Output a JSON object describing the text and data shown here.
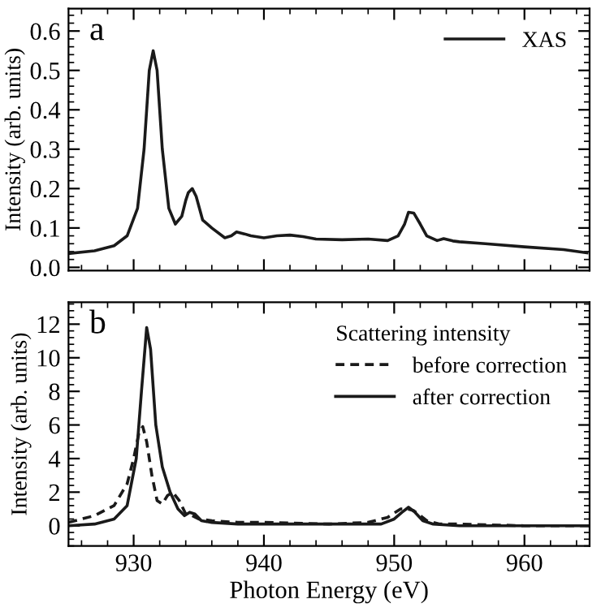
{
  "chart_data": [
    {
      "type": "line",
      "ylabel": "Intensity (arb. units)",
      "annotations": [
        "a"
      ],
      "xlim": [
        925,
        965
      ],
      "xticks": [
        930,
        940,
        950,
        960
      ],
      "ylim": [
        -0.008,
        0.657
      ],
      "yticks": [
        {
          "value": 0,
          "label": "0.0"
        },
        0.1,
        0.2,
        0.3,
        0.4,
        0.5,
        0.6
      ],
      "tick_labels": "y",
      "legend": "top right",
      "line_style": "solid",
      "series": [
        {
          "name": "XAS",
          "color": "#1a1a1a",
          "x": [
            925,
            927,
            928.5,
            929.5,
            930.3,
            930.8,
            931.2,
            931.5,
            931.8,
            932.2,
            932.7,
            933.2,
            933.7,
            934.0,
            934.2,
            934.5,
            934.8,
            935.3,
            936,
            937,
            937.5,
            937.9,
            938.5,
            939,
            940,
            941,
            942,
            943,
            944,
            946,
            948,
            949.5,
            950.3,
            950.8,
            951.1,
            951.5,
            952,
            952.5,
            953.3,
            953.8,
            954.5,
            955,
            957,
            960,
            963,
            964.8
          ],
          "values": [
            0.035,
            0.042,
            0.055,
            0.08,
            0.15,
            0.3,
            0.5,
            0.55,
            0.5,
            0.3,
            0.15,
            0.11,
            0.13,
            0.17,
            0.19,
            0.2,
            0.18,
            0.12,
            0.1,
            0.075,
            0.08,
            0.09,
            0.085,
            0.08,
            0.075,
            0.08,
            0.082,
            0.078,
            0.072,
            0.07,
            0.072,
            0.068,
            0.08,
            0.11,
            0.14,
            0.138,
            0.11,
            0.08,
            0.068,
            0.073,
            0.067,
            0.065,
            0.06,
            0.052,
            0.045,
            0.037
          ]
        }
      ]
    },
    {
      "type": "line",
      "xlabel": "Photon Energy (eV)",
      "ylabel": "Intensity (arb. units)",
      "annotations": [
        "b"
      ],
      "legend_title": "Scattering intensity",
      "xlim": [
        925,
        965
      ],
      "xticks": [
        930,
        940,
        950,
        960
      ],
      "ylim": [
        -1.2,
        13.3
      ],
      "yticks": [
        0,
        2,
        4,
        6,
        8,
        10,
        12
      ],
      "legend": "top right",
      "series": [
        {
          "name": "before correction",
          "color": "#1a1a1a",
          "line_style": "dashed",
          "x": [
            925,
            927,
            928.5,
            929.5,
            930,
            930.4,
            930.7,
            931,
            931.4,
            931.8,
            932.2,
            932.6,
            933,
            933.5,
            934,
            934.5,
            935,
            936,
            938,
            940,
            945,
            948,
            949.5,
            950.5,
            951,
            951.5,
            952,
            952.5,
            953.5,
            955,
            960,
            965
          ],
          "values": [
            0.2,
            0.6,
            1.2,
            2.5,
            4,
            5.5,
            5.9,
            5,
            3,
            1.5,
            1.3,
            1.8,
            2.0,
            1.5,
            0.7,
            0.6,
            0.4,
            0.3,
            0.2,
            0.2,
            0.1,
            0.2,
            0.5,
            1.0,
            1.0,
            0.9,
            0.6,
            0.3,
            0.1,
            0.1,
            0.0,
            0.0
          ]
        },
        {
          "name": "after correction",
          "color": "#1a1a1a",
          "line_style": "solid",
          "x": [
            925,
            927,
            928.5,
            929.5,
            930.2,
            930.6,
            931,
            931.3,
            931.7,
            932.2,
            932.8,
            933.4,
            933.9,
            934.3,
            934.7,
            935.2,
            936,
            938,
            945,
            949,
            950,
            950.6,
            951.1,
            951.6,
            952.2,
            953,
            955,
            965
          ],
          "values": [
            0.0,
            0.1,
            0.4,
            1.2,
            4,
            8,
            11.8,
            10.5,
            6,
            3.5,
            2.0,
            1.0,
            0.6,
            0.8,
            0.7,
            0.3,
            0.2,
            0.1,
            0.1,
            0.1,
            0.4,
            0.8,
            1.1,
            0.8,
            0.3,
            0.1,
            0.0,
            0.0
          ]
        }
      ]
    }
  ]
}
